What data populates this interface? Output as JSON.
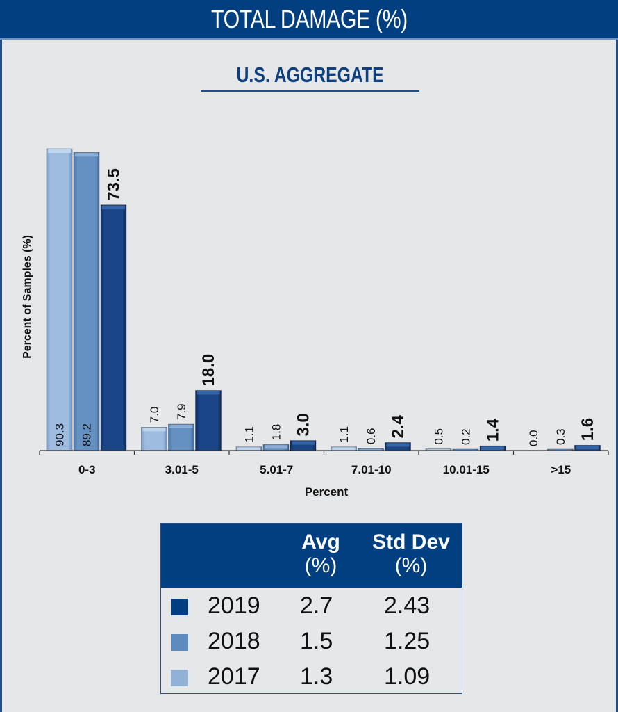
{
  "header": {
    "title": "TOTAL DAMAGE (%)"
  },
  "subtitle": "U.S. AGGREGATE",
  "colors": {
    "2017": "#92b1d6",
    "2018": "#5e8bbd",
    "2019": "#173f7e",
    "header_bg": "#023f80"
  },
  "chart_data": {
    "type": "bar",
    "title": "TOTAL DAMAGE (%)",
    "subtitle": "U.S. AGGREGATE",
    "xlabel": "Percent",
    "ylabel": "Percent of Samples (%)",
    "categories": [
      "0-3",
      "3.01-5",
      "5.01-7",
      "7.01-10",
      "10.01-15",
      ">15"
    ],
    "series": [
      {
        "name": "2017",
        "values": [
          90.3,
          7.0,
          1.1,
          1.1,
          0.5,
          0.0
        ]
      },
      {
        "name": "2018",
        "values": [
          89.2,
          7.9,
          1.8,
          0.6,
          0.2,
          0.3
        ]
      },
      {
        "name": "2019",
        "values": [
          73.5,
          18.0,
          3.0,
          2.4,
          1.4,
          1.6
        ]
      }
    ],
    "labels": [
      [
        "90.3",
        "7.0",
        "1.1",
        "1.1",
        "0.5",
        "0.0"
      ],
      [
        "89.2",
        "7.9",
        "1.8",
        "0.6",
        "0.2",
        "0.3"
      ],
      [
        "73.5",
        "18.0",
        "3.0",
        "2.4",
        "1.4",
        "1.6"
      ]
    ],
    "ylim": [
      0,
      92
    ],
    "grid": false,
    "legend": "table-below"
  },
  "stats_table": {
    "headers": [
      {
        "main": "Avg",
        "sub": "(%)"
      },
      {
        "main": "Std Dev",
        "sub": "(%)"
      }
    ],
    "rows": [
      {
        "year": "2019",
        "avg": "2.7",
        "std": "2.43"
      },
      {
        "year": "2018",
        "avg": "1.5",
        "std": "1.25"
      },
      {
        "year": "2017",
        "avg": "1.3",
        "std": "1.09"
      }
    ]
  }
}
